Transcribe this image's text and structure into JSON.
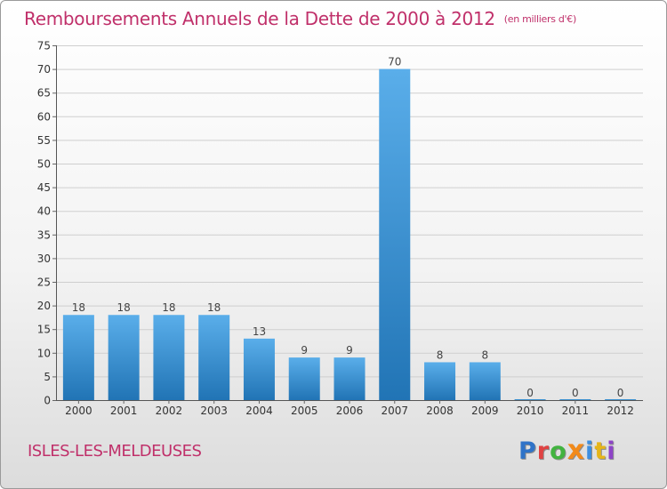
{
  "header": {
    "title": "Remboursements Annuels de la Dette de 2000 à 2012",
    "unit": "(en milliers d'€)"
  },
  "footer": {
    "commune": "ISLES-LES-MELDEUSES",
    "logo_text": "Proxiti"
  },
  "colors": {
    "title": "#c0306a",
    "bar_light": "#5aaeea",
    "bar_dark": "#2174b5",
    "grid": "#cfcfcf"
  },
  "chart_data": {
    "type": "bar",
    "categories": [
      "2000",
      "2001",
      "2002",
      "2003",
      "2004",
      "2005",
      "2006",
      "2007",
      "2008",
      "2009",
      "2010",
      "2011",
      "2012"
    ],
    "values": [
      18,
      18,
      18,
      18,
      13,
      9,
      9,
      70,
      8,
      8,
      0,
      0,
      0
    ],
    "data_labels": [
      "18",
      "18",
      "18",
      "18",
      "13",
      "9",
      "9",
      "70",
      "8",
      "8",
      "0",
      "0",
      "0"
    ],
    "title": "Remboursements Annuels de la Dette de 2000 à 2012",
    "xlabel": "",
    "ylabel": "",
    "ylim": [
      0,
      75
    ],
    "yticks": [
      0,
      5,
      10,
      15,
      20,
      25,
      30,
      35,
      40,
      45,
      50,
      55,
      60,
      65,
      70,
      75
    ],
    "grid": true,
    "legend": "none"
  }
}
